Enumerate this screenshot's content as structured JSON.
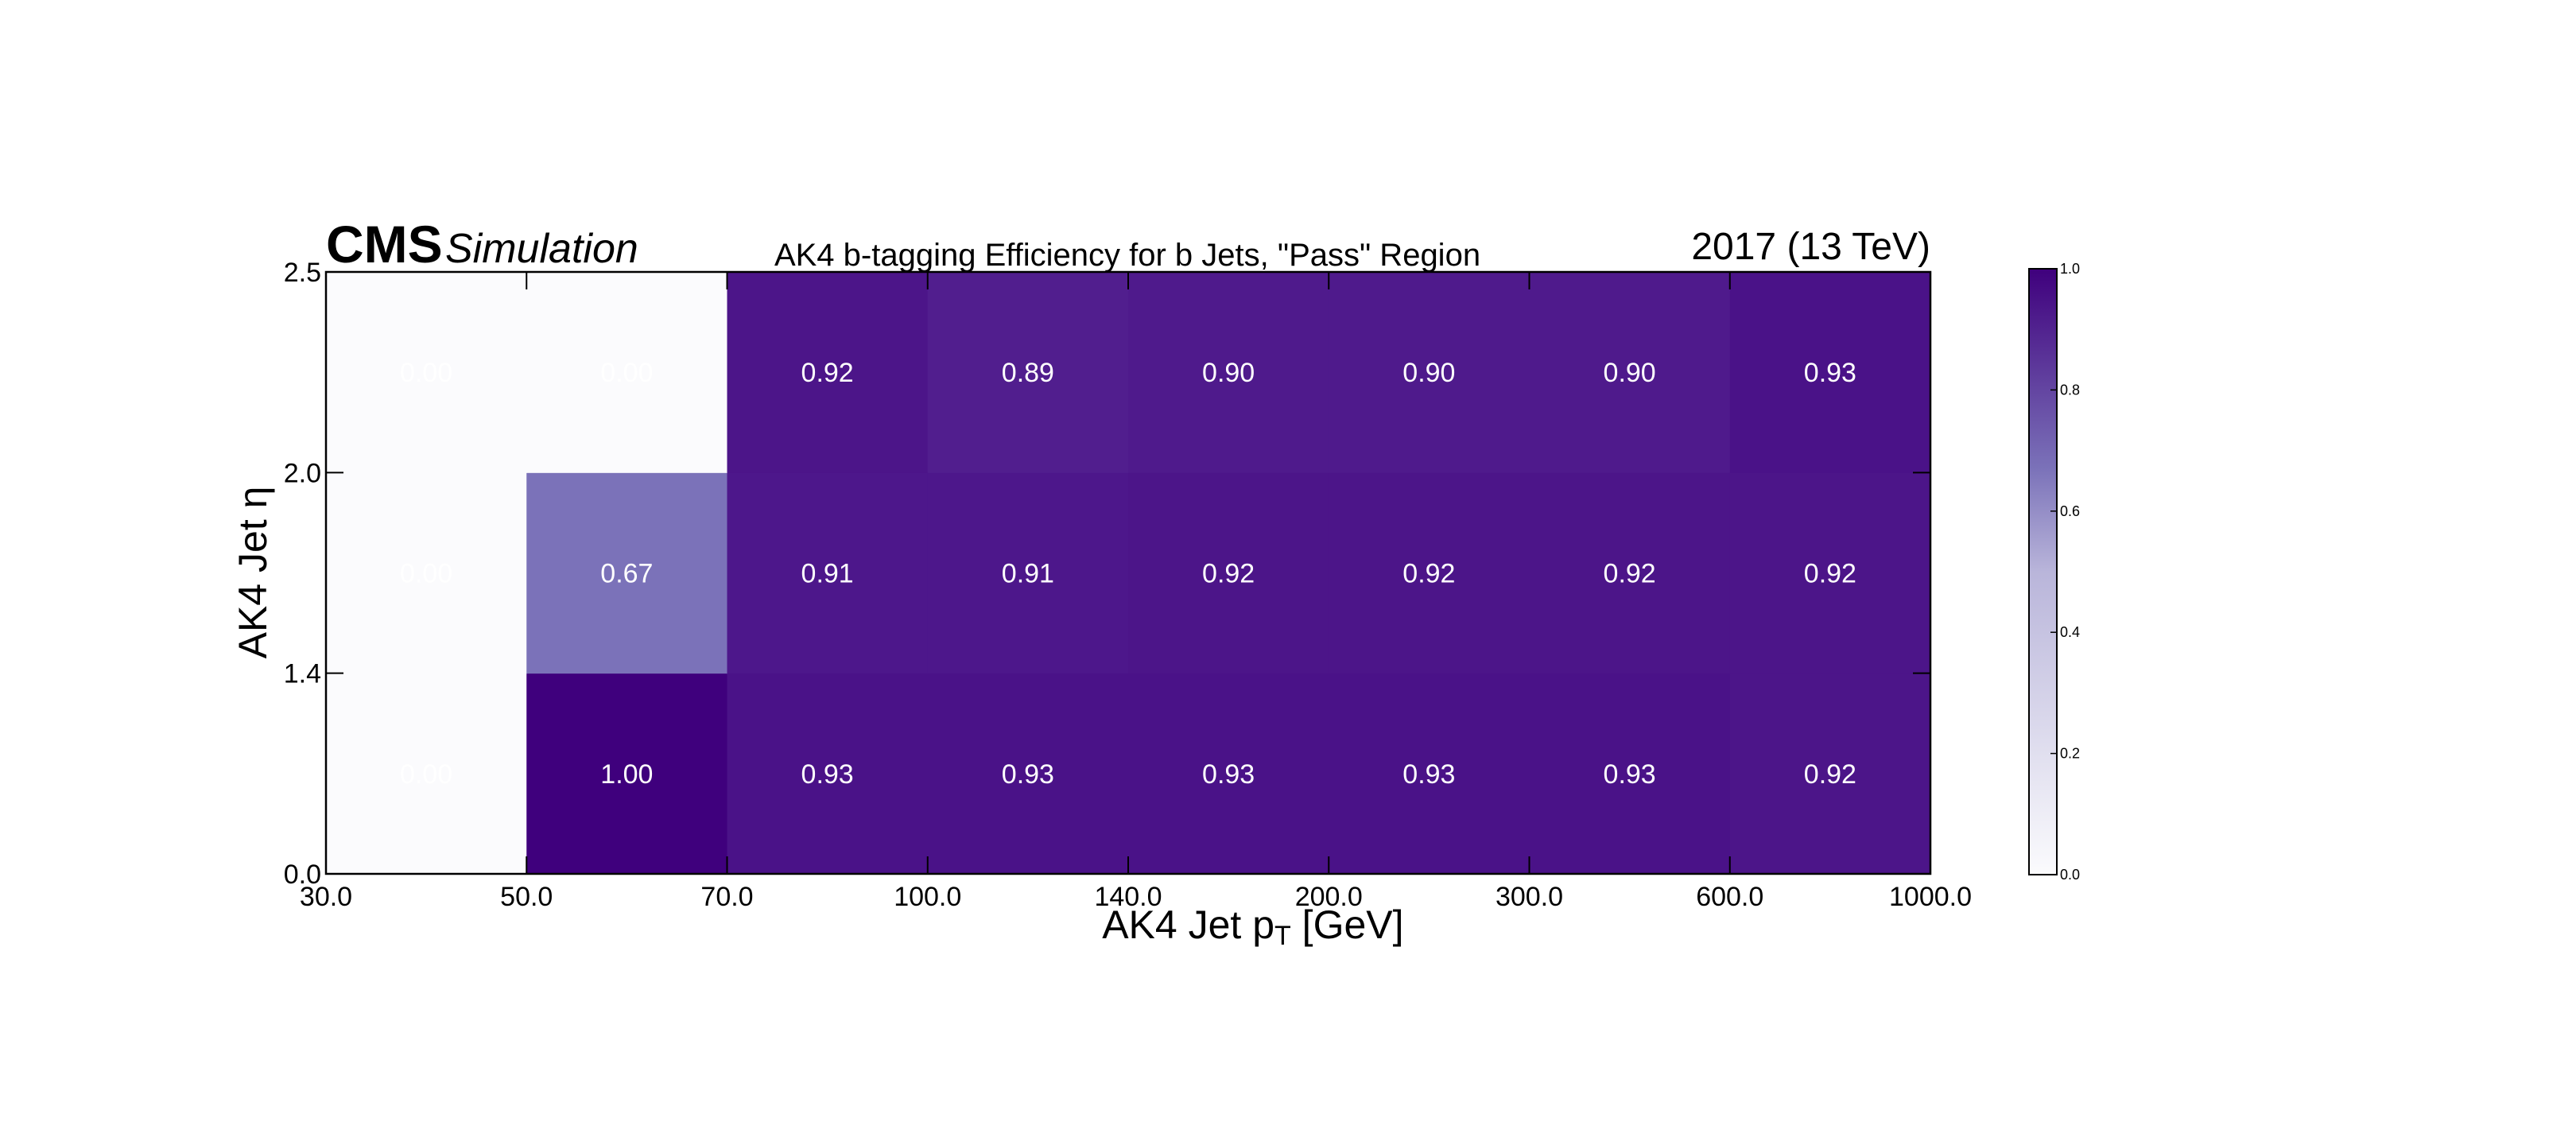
{
  "header": {
    "experiment": "CMS",
    "status": "Simulation",
    "title": "AK4 b-tagging Efficiency for b Jets, \"Pass\" Region",
    "lumi": "2017 (13 TeV)"
  },
  "colors": {
    "cmap_low": "#fbfbfd",
    "cmap_mid": "#7b72b9",
    "cmap_high": "#3f007d"
  },
  "chart_data": {
    "type": "heatmap",
    "title": "AK4 b-tagging Efficiency for b Jets, \"Pass\" Region",
    "xlabel_main": "AK4 Jet p",
    "xlabel_sub": "T",
    "xlabel_unit": " [GeV]",
    "ylabel": "AK4 Jet η",
    "x_edges": [
      30.0,
      50.0,
      70.0,
      100.0,
      140.0,
      200.0,
      300.0,
      600.0,
      1000.0
    ],
    "x_tick_labels": [
      "30.0",
      "50.0",
      "70.0",
      "100.0",
      "140.0",
      "200.0",
      "300.0",
      "600.0",
      "1000.0"
    ],
    "y_edges": [
      0.0,
      1.4,
      2.0,
      2.5
    ],
    "y_tick_labels": [
      "0.0",
      "1.4",
      "2.0",
      "2.5"
    ],
    "x_scale": "bin-index",
    "y_scale": "bin-index",
    "values": [
      [
        0.0,
        1.0,
        0.93,
        0.93,
        0.93,
        0.93,
        0.93,
        0.92
      ],
      [
        0.0,
        0.67,
        0.91,
        0.91,
        0.92,
        0.92,
        0.92,
        0.92
      ],
      [
        0.0,
        0.0,
        0.92,
        0.89,
        0.9,
        0.9,
        0.9,
        0.93
      ]
    ],
    "value_labels": [
      [
        "0.00",
        "1.00",
        "0.93",
        "0.93",
        "0.93",
        "0.93",
        "0.93",
        "0.92"
      ],
      [
        "0.00",
        "0.67",
        "0.91",
        "0.91",
        "0.92",
        "0.92",
        "0.92",
        "0.92"
      ],
      [
        "0.00",
        "0.00",
        "0.92",
        "0.89",
        "0.90",
        "0.90",
        "0.90",
        "0.93"
      ]
    ],
    "zlim": [
      0.0,
      1.0
    ],
    "colorbar_ticks": [
      "0.0",
      "0.2",
      "0.4",
      "0.6",
      "0.8",
      "1.0"
    ],
    "colorbar_values": [
      0.0,
      0.2,
      0.4,
      0.6,
      0.8,
      1.0
    ],
    "grid": false
  }
}
